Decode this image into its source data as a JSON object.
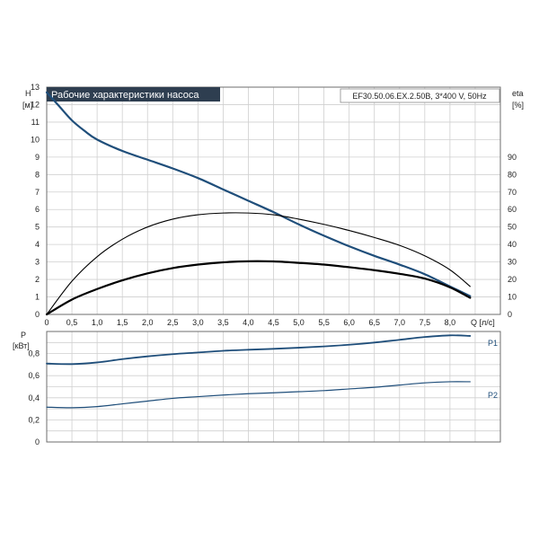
{
  "chart_data": {
    "type": "line",
    "title": "Рабочие характеристики насоса",
    "model": "EF30.50.06.EX.2.50B, 3*400 V, 50Hz",
    "grid": true,
    "top_panel": {
      "left_axis": {
        "name": "H",
        "unit": "[м]",
        "ylim": [
          0,
          13
        ],
        "ticks": [
          "0",
          "1",
          "2",
          "3",
          "4",
          "5",
          "6",
          "7",
          "8",
          "9",
          "10",
          "11",
          "12",
          "13"
        ]
      },
      "right_axis": {
        "name": "eta",
        "unit": "[%]",
        "ylim": [
          0,
          130
        ],
        "ticks": [
          "0",
          "10",
          "20",
          "30",
          "40",
          "50",
          "60",
          "70",
          "80",
          "90"
        ]
      },
      "x_axis": {
        "unit": "Q [л/с]",
        "xlim": [
          0,
          9
        ],
        "ticks": [
          "0",
          "0,5",
          "1,0",
          "1,5",
          "2,0",
          "2,5",
          "3,0",
          "3,5",
          "4,0",
          "4,5",
          "5,0",
          "5,5",
          "6,0",
          "6,5",
          "7,0",
          "7,5",
          "8,0"
        ]
      },
      "series": [
        {
          "axis": "left",
          "color": "#1f4e7a",
          "width": 2.2,
          "x": [
            0,
            0.25,
            0.5,
            0.75,
            1.0,
            1.5,
            2.0,
            2.5,
            3.0,
            3.5,
            4.0,
            4.5,
            5.0,
            5.5,
            6.0,
            6.5,
            7.0,
            7.5,
            8.0,
            8.4
          ],
          "y": [
            12.7,
            11.9,
            11.1,
            10.5,
            10.0,
            9.35,
            8.85,
            8.35,
            7.8,
            7.15,
            6.5,
            5.85,
            5.15,
            4.5,
            3.9,
            3.35,
            2.85,
            2.3,
            1.6,
            1.05
          ]
        },
        {
          "axis": "right",
          "color": "#000000",
          "width": 1.1,
          "x": [
            0,
            0.5,
            1.0,
            1.5,
            2.0,
            2.5,
            3.0,
            3.5,
            4.0,
            4.5,
            5.0,
            5.5,
            6.0,
            6.5,
            7.0,
            7.5,
            8.0,
            8.4
          ],
          "y": [
            0,
            19,
            33,
            43,
            50,
            54.5,
            57,
            58,
            58,
            57,
            54.5,
            51.5,
            48,
            44,
            39.5,
            33.5,
            25.5,
            16
          ]
        },
        {
          "axis": "right",
          "color": "#000000",
          "width": 2.2,
          "x": [
            0,
            0.5,
            1.0,
            1.5,
            2.0,
            2.5,
            3.0,
            3.5,
            4.0,
            4.5,
            5.0,
            5.5,
            6.0,
            6.5,
            7.0,
            7.5,
            8.0,
            8.4
          ],
          "y": [
            0,
            8.5,
            14.5,
            19.5,
            23.5,
            26.5,
            28.5,
            29.8,
            30.4,
            30.3,
            29.5,
            28.5,
            27,
            25.3,
            23.2,
            20.5,
            15.5,
            9.5
          ]
        }
      ]
    },
    "bottom_panel": {
      "y_axis": {
        "name": "P",
        "unit": "[кВт]",
        "ylim": [
          0,
          1.0
        ],
        "ticks": [
          "0",
          "0,2",
          "0,4",
          "0,6",
          "0,8"
        ]
      },
      "x_axis": {
        "xlim": [
          0,
          9
        ]
      },
      "series": [
        {
          "name": "P1",
          "color": "#1f4e7a",
          "width": 1.8,
          "x": [
            0,
            0.5,
            1.0,
            1.5,
            2.0,
            2.5,
            3.0,
            3.5,
            4.0,
            4.5,
            5.0,
            5.5,
            6.0,
            6.5,
            7.0,
            7.5,
            8.0,
            8.4
          ],
          "y": [
            0.71,
            0.705,
            0.72,
            0.75,
            0.775,
            0.795,
            0.81,
            0.825,
            0.835,
            0.843,
            0.853,
            0.865,
            0.88,
            0.9,
            0.925,
            0.95,
            0.965,
            0.96
          ]
        },
        {
          "name": "P2",
          "color": "#1f4e7a",
          "width": 1.2,
          "x": [
            0,
            0.5,
            1.0,
            1.5,
            2.0,
            2.5,
            3.0,
            3.5,
            4.0,
            4.5,
            5.0,
            5.5,
            6.0,
            6.5,
            7.0,
            7.5,
            8.0,
            8.4
          ],
          "y": [
            0.315,
            0.31,
            0.32,
            0.345,
            0.37,
            0.395,
            0.41,
            0.425,
            0.437,
            0.445,
            0.455,
            0.465,
            0.48,
            0.495,
            0.515,
            0.535,
            0.545,
            0.545
          ]
        }
      ]
    }
  }
}
